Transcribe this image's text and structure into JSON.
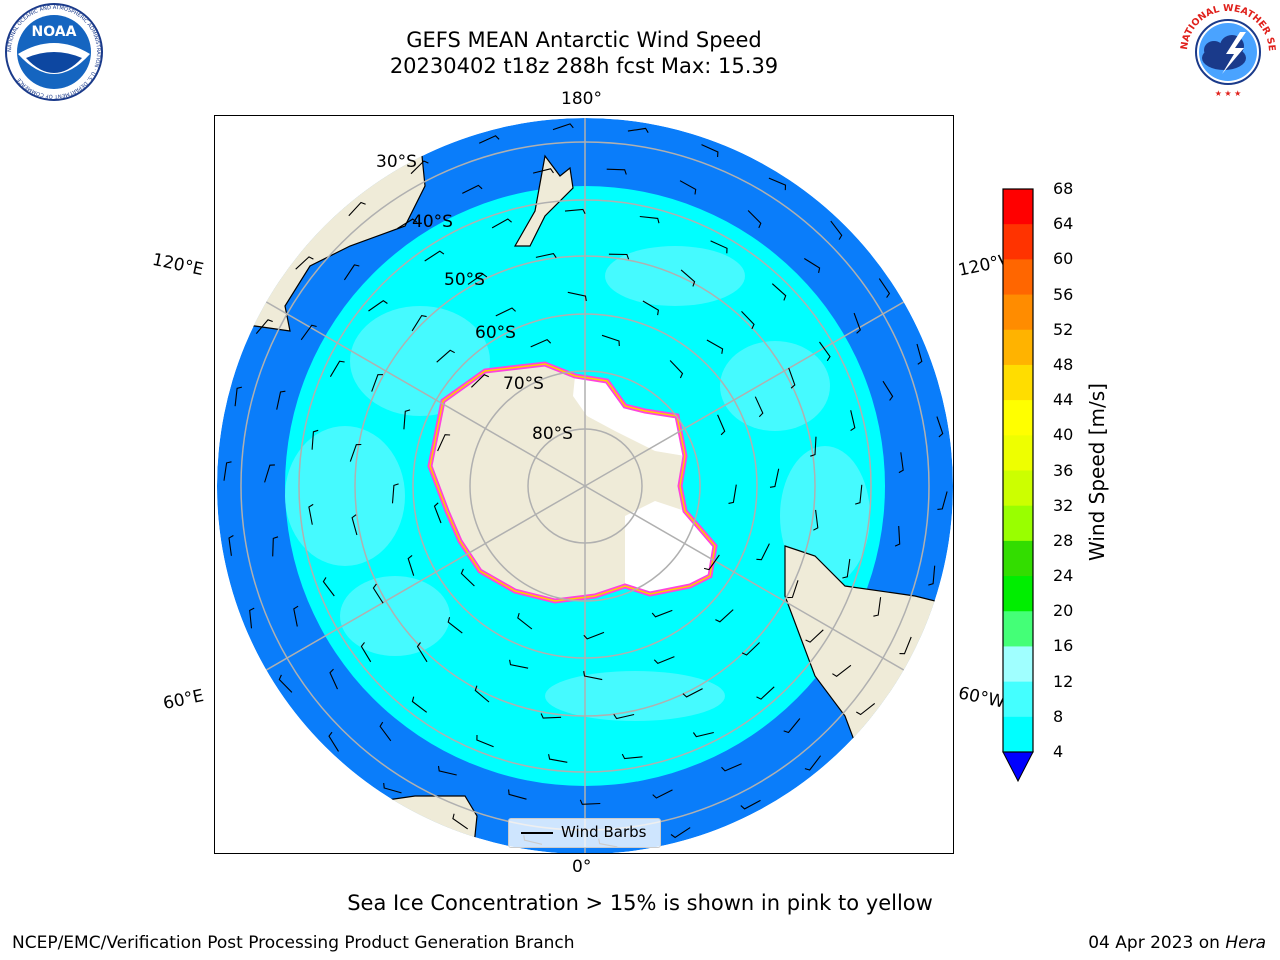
{
  "header": {
    "title_line1": "GEFS MEAN Antarctic Wind Speed",
    "title_line2": "20230402 t18z 288h fcst   Max: 15.39"
  },
  "logos": {
    "noaa": "NOAA",
    "noaa_ring": "NATIONAL OCEANIC AND ATMOSPHERIC ADMINISTRATION · U.S. DEPARTMENT OF COMMERCE",
    "nws_ring": "NATIONAL WEATHER SERVICE"
  },
  "map": {
    "lon_labels": {
      "top": "180°",
      "bottom": "0°",
      "upper_left": "120°E",
      "upper_right": "120°W",
      "lower_left": "60°E",
      "lower_right": "60°W"
    },
    "lat_labels": [
      "30°S",
      "40°S",
      "50°S",
      "60°S",
      "70°S",
      "80°S"
    ],
    "legend": "Wind Barbs",
    "colors": {
      "ocean_low": "#0a7dfa",
      "ocean_mid": "#00ffff",
      "ocean_high": "#4dfaff",
      "land": "#efebd8",
      "ice_pink": "#ff44dd",
      "ice_yellow": "#ffcc00",
      "grid": "#b0b0b0"
    }
  },
  "colorbar": {
    "label": "Wind Speed [m/s]",
    "ticks": [
      "68",
      "64",
      "60",
      "56",
      "52",
      "48",
      "44",
      "40",
      "36",
      "32",
      "28",
      "24",
      "20",
      "16",
      "12",
      "8",
      "4"
    ],
    "colors": [
      "#ff0000",
      "#ff3300",
      "#ff6600",
      "#ff8c00",
      "#ffb300",
      "#ffdd00",
      "#ffff00",
      "#eeff00",
      "#ccff00",
      "#99ff00",
      "#33dd00",
      "#00ee00",
      "#44ff77",
      "#a0ffff",
      "#44ffff",
      "#00ffff",
      "#0a7dfa"
    ],
    "extend_color": "#0000ff"
  },
  "footer": {
    "ice_note": "Sea Ice Concentration > 15% is shown in pink to yellow",
    "left": "NCEP/EMC/Verification Post Processing Product Generation Branch",
    "date": "04 Apr 2023 on ",
    "machine": "Hera"
  }
}
